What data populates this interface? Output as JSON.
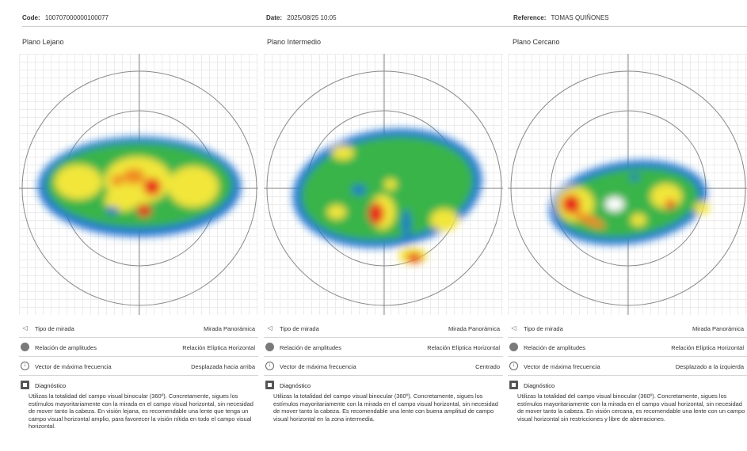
{
  "header": {
    "code_label": "Code:",
    "code_value": "100707000000100077",
    "date_label": "Date:",
    "date_value": "2025/08/25 10:05",
    "reference_label": "Reference:",
    "reference_value": "TOMAS QUIÑONES"
  },
  "panels": [
    {
      "title": "Plano Lejano",
      "rows": [
        {
          "icon": "eye-icon",
          "label": "Tipo de mirada",
          "value": "Mirada Panorámica"
        },
        {
          "icon": "ellipse-icon",
          "label": "Relación de amplitudes",
          "value": "Relación Elíptica Horizontal"
        },
        {
          "icon": "vector-icon",
          "label": "Vector de máxima frecuencia",
          "value": "Desplazada hacia arriba"
        }
      ],
      "diagnostic_label": "Diagnóstico",
      "diagnostic_text": "Utilizas la totalidad del campo visual binocular (360º). Concretamente, sigues los estímulos mayoritariamente con la mirada en el campo visual horizontal, sin necesidad de mover tanto la cabeza. En visión lejana, es recomendable una lente que tenga un campo visual horizontal amplio, para favorecer la visión nítida en todo el campo visual horizontal."
    },
    {
      "title": "Plano Intermedio",
      "rows": [
        {
          "icon": "eye-icon",
          "label": "Tipo de mirada",
          "value": "Mirada Panorámica"
        },
        {
          "icon": "ellipse-icon",
          "label": "Relación de amplitudes",
          "value": "Relación Elíptica Horizontal"
        },
        {
          "icon": "vector-icon",
          "label": "Vector de máxima frecuencia",
          "value": "Centrado"
        }
      ],
      "diagnostic_label": "Diagnóstico",
      "diagnostic_text": "Utilizas la totalidad del campo visual binocular (360º). Concretamente, sigues los estímulos mayoritariamente con la mirada en el campo visual horizontal, sin necesidad de mover tanto la cabeza. Es recomendable una lente con buena amplitud de campo visual horizontal en la zona intermedia."
    },
    {
      "title": "Plano Cercano",
      "rows": [
        {
          "icon": "eye-icon",
          "label": "Tipo de mirada",
          "value": "Mirada Panorámica"
        },
        {
          "icon": "ellipse-icon",
          "label": "Relación de amplitudes",
          "value": "Relación Elíptica Horizontal"
        },
        {
          "icon": "vector-icon",
          "label": "Vector de máxima frecuencia",
          "value": "Desplazado a la izquierda"
        }
      ],
      "diagnostic_label": "Diagnóstico",
      "diagnostic_text": "Utilizas la totalidad del campo visual binocular (360º). Concretamente, sigues los estímulos mayoritariamente con la mirada en el campo visual horizontal, sin necesidad de mover tanto la cabeza. En visión cercana, es recomendable una lente con un campo visual horizontal sin restricciones y libre de aberraciones."
    }
  ],
  "colors": {
    "heat_outer": "#1a6fd1",
    "heat_mid": "#38b44a",
    "heat_high": "#f2e63a",
    "heat_peak": "#e8261e",
    "grid": "#ececec"
  }
}
